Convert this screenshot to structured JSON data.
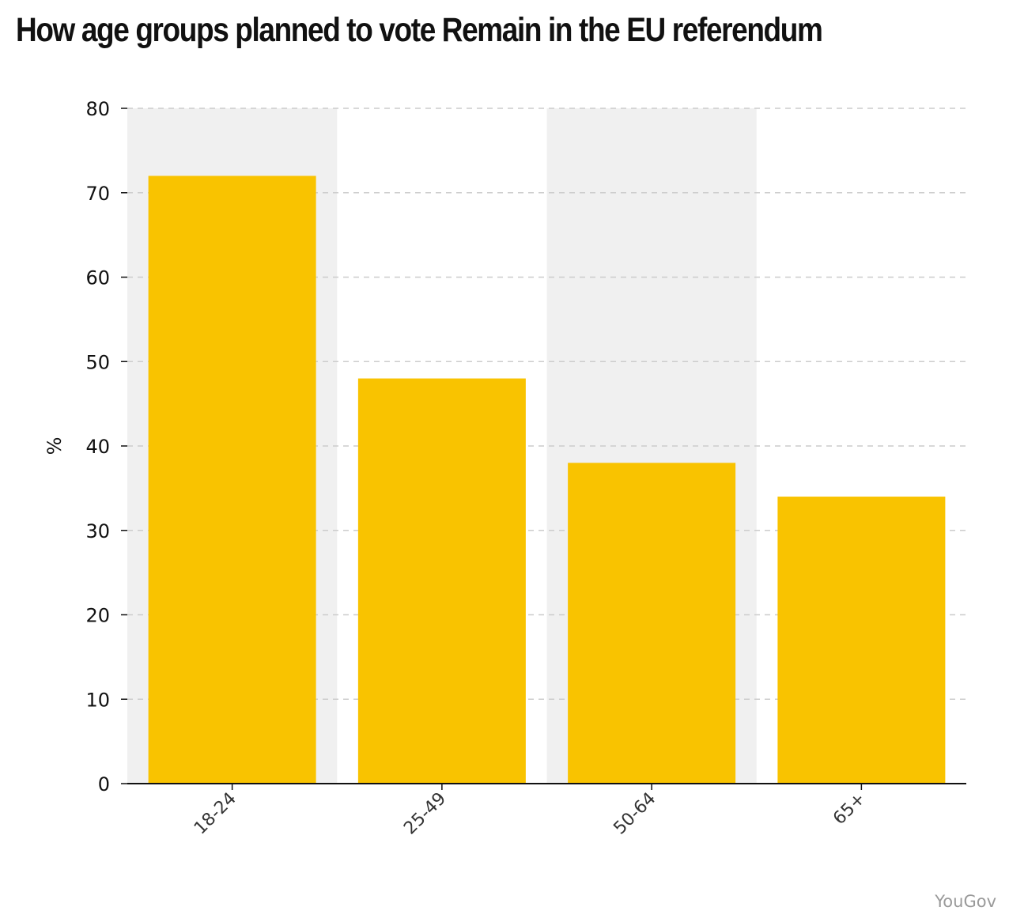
{
  "title": "How age groups planned to vote Remain in the EU referendum",
  "source": "YouGov",
  "colors": {
    "bar": "#f9c300",
    "band": "#f0f0f0",
    "grid": "#cccccc",
    "axis": "#111111"
  },
  "chart_data": {
    "type": "bar",
    "title": "How age groups planned to vote Remain in the EU referendum",
    "categories": [
      "18-24",
      "25-49",
      "50-64",
      "65+"
    ],
    "values": [
      72,
      48,
      38,
      34
    ],
    "xlabel": "",
    "ylabel": "%",
    "ylim": [
      0,
      80
    ],
    "yticks": [
      0,
      10,
      20,
      30,
      40,
      50,
      60,
      70,
      80
    ],
    "grid": true,
    "grid_style": "dashed",
    "alternating_bands": true,
    "legend": "none"
  }
}
